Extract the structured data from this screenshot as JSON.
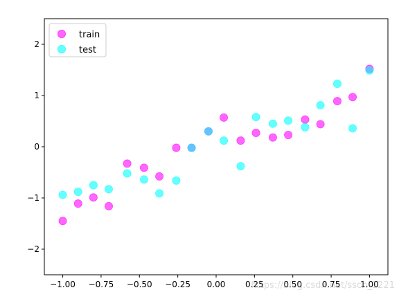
{
  "chart_data": {
    "type": "scatter",
    "title": "",
    "xlabel": "",
    "ylabel": "",
    "xlim": [
      -1.12,
      1.12
    ],
    "ylim": [
      -2.5,
      2.5
    ],
    "xticks": [
      -1.0,
      -0.75,
      -0.5,
      -0.25,
      0.0,
      0.25,
      0.5,
      0.75,
      1.0
    ],
    "xtick_labels": [
      "−1.00",
      "−0.75",
      "−0.50",
      "−0.25",
      "0.00",
      "0.25",
      "0.50",
      "0.75",
      "1.00"
    ],
    "yticks": [
      -2,
      -1,
      0,
      1,
      2
    ],
    "ytick_labels": [
      "−2",
      "−1",
      "0",
      "1",
      "2"
    ],
    "grid": false,
    "legend_position": "top-left",
    "series": [
      {
        "name": "train",
        "color": "#ff00ff",
        "opacity": 0.6,
        "points": [
          [
            -1.0,
            -1.45
          ],
          [
            -0.9,
            -1.11
          ],
          [
            -0.8,
            -0.99
          ],
          [
            -0.7,
            -1.16
          ],
          [
            -0.58,
            -0.33
          ],
          [
            -0.47,
            -0.41
          ],
          [
            -0.37,
            -0.58
          ],
          [
            -0.26,
            -0.02
          ],
          [
            -0.16,
            -0.02
          ],
          [
            -0.05,
            0.3
          ],
          [
            0.05,
            0.57
          ],
          [
            0.16,
            0.12
          ],
          [
            0.26,
            0.27
          ],
          [
            0.37,
            0.18
          ],
          [
            0.47,
            0.23
          ],
          [
            0.58,
            0.53
          ],
          [
            0.68,
            0.44
          ],
          [
            0.79,
            0.89
          ],
          [
            0.89,
            0.97
          ],
          [
            1.0,
            1.52
          ]
        ]
      },
      {
        "name": "test",
        "color": "#00ffff",
        "opacity": 0.6,
        "points": [
          [
            -1.0,
            -0.94
          ],
          [
            -0.9,
            -0.88
          ],
          [
            -0.8,
            -0.75
          ],
          [
            -0.7,
            -0.83
          ],
          [
            -0.58,
            -0.52
          ],
          [
            -0.47,
            -0.64
          ],
          [
            -0.37,
            -0.91
          ],
          [
            -0.26,
            -0.66
          ],
          [
            -0.16,
            -0.02
          ],
          [
            -0.05,
            0.3
          ],
          [
            0.05,
            0.12
          ],
          [
            0.16,
            -0.38
          ],
          [
            0.26,
            0.58
          ],
          [
            0.37,
            0.45
          ],
          [
            0.47,
            0.51
          ],
          [
            0.58,
            0.38
          ],
          [
            0.68,
            0.81
          ],
          [
            0.79,
            1.23
          ],
          [
            0.89,
            0.36
          ],
          [
            1.0,
            1.49
          ]
        ]
      }
    ]
  },
  "watermark": "https://blog.csdn.net/ssch_1221"
}
